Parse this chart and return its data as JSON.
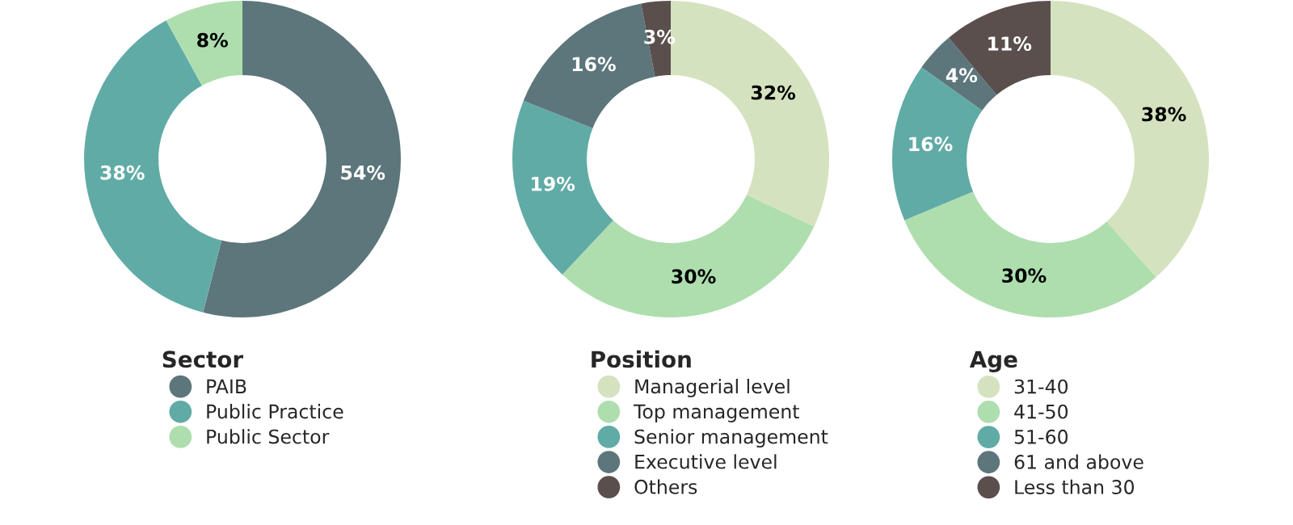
{
  "chart_data": [
    {
      "type": "donut",
      "legend_title": "Sector",
      "categories": [
        "PAIB",
        "Public Practice",
        "Public Sector"
      ],
      "values": [
        54,
        38,
        8
      ],
      "value_labels": [
        "54%",
        "38%",
        "8%"
      ],
      "colors": [
        "#5c767b",
        "#61aba6",
        "#aedeae"
      ],
      "legend": "bottom"
    },
    {
      "type": "donut",
      "legend_title": "Position",
      "categories": [
        "Managerial level",
        "Top management",
        "Senior management",
        "Executive level",
        "Others"
      ],
      "values": [
        32,
        30,
        19,
        16,
        3
      ],
      "value_labels": [
        "32%",
        "30%",
        "19%",
        "16%",
        "3%"
      ],
      "colors": [
        "#d5e2bf",
        "#aedeae",
        "#61aba6",
        "#5c767b",
        "#5a4f4d"
      ],
      "legend": "bottom"
    },
    {
      "type": "donut",
      "legend_title": "Age",
      "categories": [
        "31-40",
        "41-50",
        "51-60",
        "61 and above",
        "Less than 30"
      ],
      "values": [
        38,
        30,
        16,
        4,
        11
      ],
      "value_labels": [
        "38%",
        "30%",
        "16%",
        "4%",
        "11%"
      ],
      "colors": [
        "#d5e2bf",
        "#aedeae",
        "#61aba6",
        "#5c767b",
        "#5a4f4d"
      ],
      "legend": "bottom"
    }
  ]
}
